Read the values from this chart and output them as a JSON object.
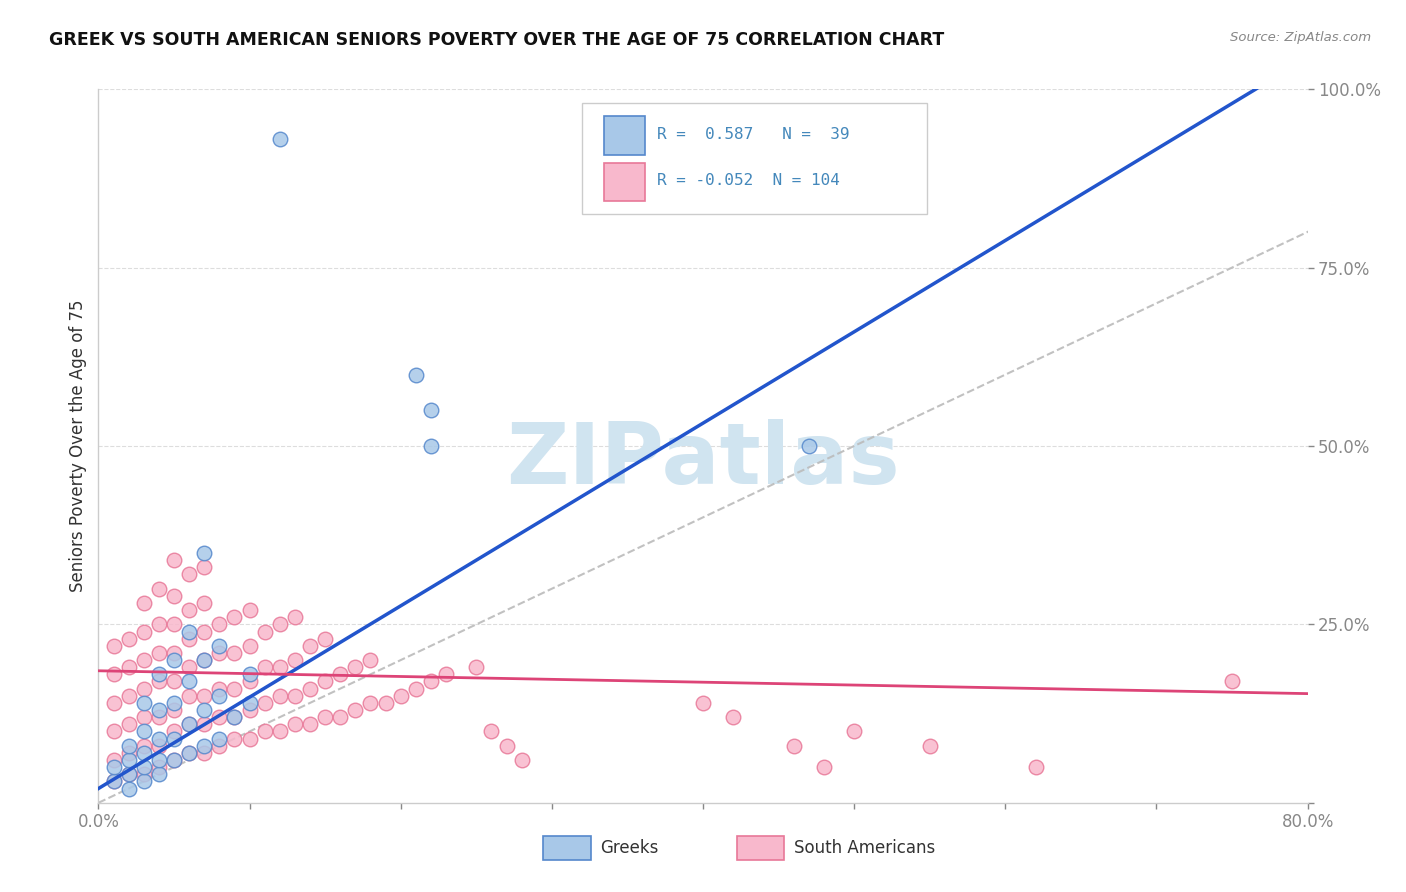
{
  "title": "GREEK VS SOUTH AMERICAN SENIORS POVERTY OVER THE AGE OF 75 CORRELATION CHART",
  "source": "Source: ZipAtlas.com",
  "ylabel": "Seniors Poverty Over the Age of 75",
  "xlim": [
    0.0,
    0.8
  ],
  "ylim": [
    0.0,
    1.0
  ],
  "greek_color": "#a8c8e8",
  "greek_edge": "#5588cc",
  "sa_color": "#f8b8cc",
  "sa_edge": "#e87898",
  "line_greek_color": "#2255cc",
  "line_sa_color": "#dd4477",
  "watermark": "ZIPatlas",
  "watermark_color": "#d0e4f0",
  "R_greek": 0.587,
  "N_greek": 39,
  "R_sa": -0.052,
  "N_sa": 104,
  "greek_slope": 1.28,
  "greek_intercept": 0.02,
  "sa_slope": -0.04,
  "sa_intercept": 0.185,
  "background_color": "#ffffff",
  "grid_color": "#dddddd",
  "tick_color": "#4488bb",
  "axis_label_color": "#333333",
  "title_color": "#111111",
  "legend_greek_label": "Greeks",
  "legend_sa_label": "South Americans",
  "greek_x": [
    0.01,
    0.01,
    0.02,
    0.02,
    0.02,
    0.02,
    0.03,
    0.03,
    0.03,
    0.03,
    0.03,
    0.04,
    0.04,
    0.04,
    0.04,
    0.04,
    0.05,
    0.05,
    0.05,
    0.05,
    0.06,
    0.06,
    0.06,
    0.06,
    0.07,
    0.07,
    0.07,
    0.07,
    0.08,
    0.08,
    0.08,
    0.09,
    0.1,
    0.1,
    0.21,
    0.22,
    0.22,
    0.47,
    0.12
  ],
  "greek_y": [
    0.03,
    0.05,
    0.02,
    0.04,
    0.06,
    0.08,
    0.03,
    0.05,
    0.07,
    0.1,
    0.14,
    0.04,
    0.06,
    0.09,
    0.13,
    0.18,
    0.06,
    0.09,
    0.14,
    0.2,
    0.07,
    0.11,
    0.17,
    0.24,
    0.08,
    0.13,
    0.2,
    0.35,
    0.09,
    0.15,
    0.22,
    0.12,
    0.14,
    0.18,
    0.6,
    0.55,
    0.5,
    0.5,
    0.93
  ],
  "sa_x": [
    0.01,
    0.01,
    0.01,
    0.01,
    0.01,
    0.01,
    0.02,
    0.02,
    0.02,
    0.02,
    0.02,
    0.02,
    0.03,
    0.03,
    0.03,
    0.03,
    0.03,
    0.03,
    0.03,
    0.04,
    0.04,
    0.04,
    0.04,
    0.04,
    0.04,
    0.04,
    0.05,
    0.05,
    0.05,
    0.05,
    0.05,
    0.05,
    0.05,
    0.05,
    0.06,
    0.06,
    0.06,
    0.06,
    0.06,
    0.06,
    0.06,
    0.07,
    0.07,
    0.07,
    0.07,
    0.07,
    0.07,
    0.07,
    0.08,
    0.08,
    0.08,
    0.08,
    0.08,
    0.09,
    0.09,
    0.09,
    0.09,
    0.09,
    0.1,
    0.1,
    0.1,
    0.1,
    0.1,
    0.11,
    0.11,
    0.11,
    0.11,
    0.12,
    0.12,
    0.12,
    0.12,
    0.13,
    0.13,
    0.13,
    0.13,
    0.14,
    0.14,
    0.14,
    0.15,
    0.15,
    0.15,
    0.16,
    0.16,
    0.17,
    0.17,
    0.18,
    0.18,
    0.19,
    0.2,
    0.21,
    0.22,
    0.23,
    0.25,
    0.26,
    0.27,
    0.28,
    0.4,
    0.42,
    0.46,
    0.48,
    0.5,
    0.55,
    0.62,
    0.75
  ],
  "sa_y": [
    0.03,
    0.06,
    0.1,
    0.14,
    0.18,
    0.22,
    0.04,
    0.07,
    0.11,
    0.15,
    0.19,
    0.23,
    0.04,
    0.08,
    0.12,
    0.16,
    0.2,
    0.24,
    0.28,
    0.05,
    0.08,
    0.12,
    0.17,
    0.21,
    0.25,
    0.3,
    0.06,
    0.1,
    0.13,
    0.17,
    0.21,
    0.25,
    0.29,
    0.34,
    0.07,
    0.11,
    0.15,
    0.19,
    0.23,
    0.27,
    0.32,
    0.07,
    0.11,
    0.15,
    0.2,
    0.24,
    0.28,
    0.33,
    0.08,
    0.12,
    0.16,
    0.21,
    0.25,
    0.09,
    0.12,
    0.16,
    0.21,
    0.26,
    0.09,
    0.13,
    0.17,
    0.22,
    0.27,
    0.1,
    0.14,
    0.19,
    0.24,
    0.1,
    0.15,
    0.19,
    0.25,
    0.11,
    0.15,
    0.2,
    0.26,
    0.11,
    0.16,
    0.22,
    0.12,
    0.17,
    0.23,
    0.12,
    0.18,
    0.13,
    0.19,
    0.14,
    0.2,
    0.14,
    0.15,
    0.16,
    0.17,
    0.18,
    0.19,
    0.1,
    0.08,
    0.06,
    0.14,
    0.12,
    0.08,
    0.05,
    0.1,
    0.08,
    0.05,
    0.17
  ]
}
